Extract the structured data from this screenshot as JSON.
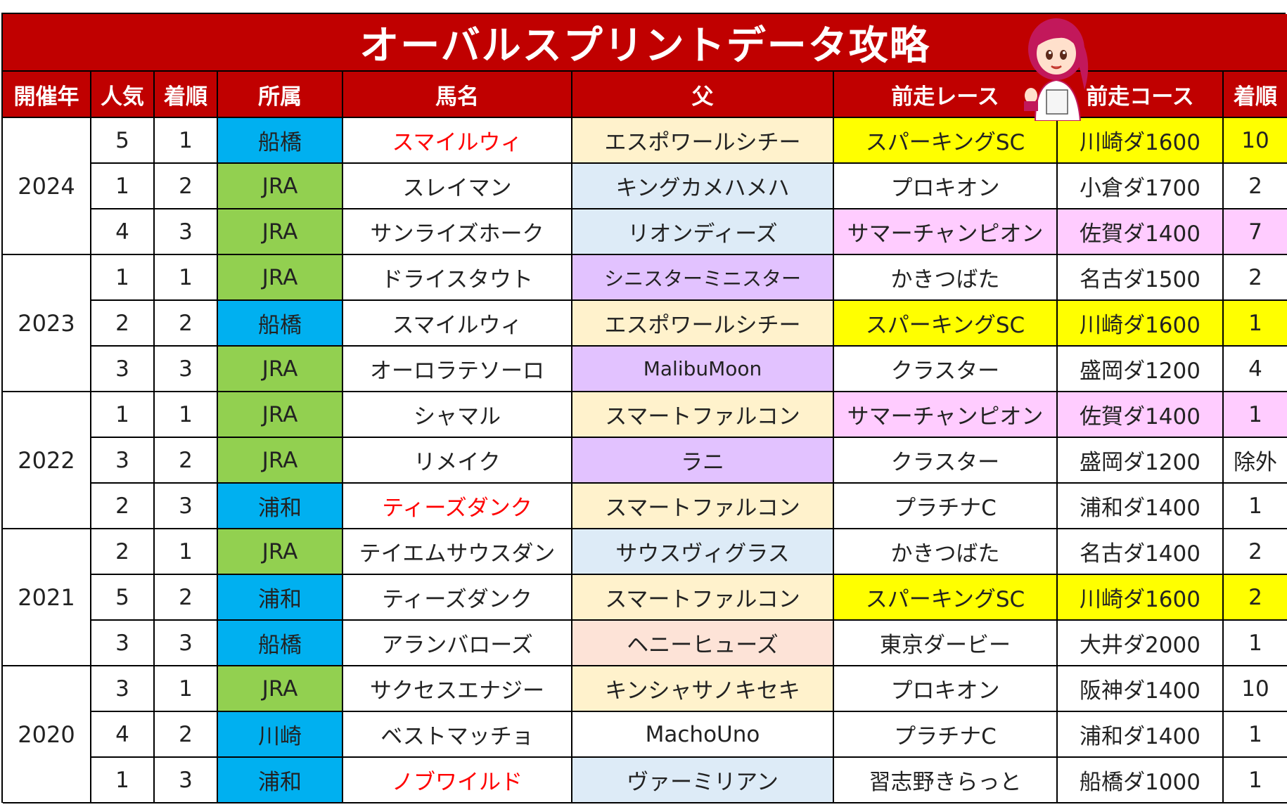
{
  "title": "オーバルスプリントデータ攻略",
  "colors": {
    "header_bg": "#c00000",
    "header_text": "#ffffff",
    "affil_funabashi": "#00b0f0",
    "affil_urawa": "#00b0f0",
    "affil_kawasaki": "#00b0f0",
    "affil_jra": "#92d050",
    "sire_cream": "#fff2cc",
    "sire_blue": "#ddebf7",
    "sire_purple": "#e2c2ff",
    "sire_peach": "#fde3d7",
    "hl_yellow": "#ffff00",
    "hl_pink": "#ffccff",
    "red_name": "#ff0000"
  },
  "headers": [
    "開催年",
    "人気",
    "着順",
    "所属",
    "馬名",
    "父",
    "前走レース",
    "前走コース",
    "着順"
  ],
  "rows": [
    {
      "year": "2024",
      "pop": "5",
      "rank": "1",
      "affil": "船橋",
      "affil_color": "#00b0f0",
      "horse": "スマイルウィ",
      "horse_red": true,
      "sire": "エスポワールシチー",
      "sire_color": "#fff2cc",
      "prev_race": "スパーキングSC",
      "prev_course": "川崎ダ1600",
      "prev_rank": "10",
      "hl": "#ffff00"
    },
    {
      "year": "",
      "pop": "1",
      "rank": "2",
      "affil": "JRA",
      "affil_color": "#92d050",
      "horse": "スレイマン",
      "horse_red": false,
      "sire": "キングカメハメハ",
      "sire_color": "#ddebf7",
      "prev_race": "プロキオン",
      "prev_course": "小倉ダ1700",
      "prev_rank": "2",
      "hl": ""
    },
    {
      "year": "",
      "pop": "4",
      "rank": "3",
      "affil": "JRA",
      "affil_color": "#92d050",
      "horse": "サンライズホーク",
      "horse_red": false,
      "sire": "リオンディーズ",
      "sire_color": "#ddebf7",
      "prev_race": "サマーチャンピオン",
      "prev_course": "佐賀ダ1400",
      "prev_rank": "7",
      "hl": "#ffccff"
    },
    {
      "year": "2023",
      "pop": "1",
      "rank": "1",
      "affil": "JRA",
      "affil_color": "#92d050",
      "horse": "ドライスタウト",
      "horse_red": false,
      "sire": "シニスターミニスター",
      "sire_color": "#e2c2ff",
      "prev_race": "かきつばた",
      "prev_course": "名古ダ1500",
      "prev_rank": "2",
      "hl": ""
    },
    {
      "year": "",
      "pop": "2",
      "rank": "2",
      "affil": "船橋",
      "affil_color": "#00b0f0",
      "horse": "スマイルウィ",
      "horse_red": false,
      "sire": "エスポワールシチー",
      "sire_color": "#fff2cc",
      "prev_race": "スパーキングSC",
      "prev_course": "川崎ダ1600",
      "prev_rank": "1",
      "hl": "#ffff00"
    },
    {
      "year": "",
      "pop": "3",
      "rank": "3",
      "affil": "JRA",
      "affil_color": "#92d050",
      "horse": "オーロラテソーロ",
      "horse_red": false,
      "sire": "MalibuMoon",
      "sire_color": "#e2c2ff",
      "prev_race": "クラスター",
      "prev_course": "盛岡ダ1200",
      "prev_rank": "4",
      "hl": ""
    },
    {
      "year": "2022",
      "pop": "1",
      "rank": "1",
      "affil": "JRA",
      "affil_color": "#92d050",
      "horse": "シャマル",
      "horse_red": false,
      "sire": "スマートファルコン",
      "sire_color": "#fff2cc",
      "prev_race": "サマーチャンピオン",
      "prev_course": "佐賀ダ1400",
      "prev_rank": "1",
      "hl": "#ffccff"
    },
    {
      "year": "",
      "pop": "3",
      "rank": "2",
      "affil": "JRA",
      "affil_color": "#92d050",
      "horse": "リメイク",
      "horse_red": false,
      "sire": "ラニ",
      "sire_color": "#e2c2ff",
      "prev_race": "クラスター",
      "prev_course": "盛岡ダ1200",
      "prev_rank": "除外",
      "hl": ""
    },
    {
      "year": "",
      "pop": "2",
      "rank": "3",
      "affil": "浦和",
      "affil_color": "#00b0f0",
      "horse": "ティーズダンク",
      "horse_red": true,
      "sire": "スマートファルコン",
      "sire_color": "#fff2cc",
      "prev_race": "プラチナC",
      "prev_course": "浦和ダ1400",
      "prev_rank": "1",
      "hl": ""
    },
    {
      "year": "2021",
      "pop": "2",
      "rank": "1",
      "affil": "JRA",
      "affil_color": "#92d050",
      "horse": "テイエムサウスダン",
      "horse_red": false,
      "sire": "サウスヴィグラス",
      "sire_color": "#ddebf7",
      "prev_race": "かきつばた",
      "prev_course": "名古ダ1400",
      "prev_rank": "2",
      "hl": ""
    },
    {
      "year": "",
      "pop": "5",
      "rank": "2",
      "affil": "浦和",
      "affil_color": "#00b0f0",
      "horse": "ティーズダンク",
      "horse_red": false,
      "sire": "スマートファルコン",
      "sire_color": "#fff2cc",
      "prev_race": "スパーキングSC",
      "prev_course": "川崎ダ1600",
      "prev_rank": "2",
      "hl": "#ffff00"
    },
    {
      "year": "",
      "pop": "3",
      "rank": "3",
      "affil": "船橋",
      "affil_color": "#00b0f0",
      "horse": "アランバローズ",
      "horse_red": false,
      "sire": "ヘニーヒューズ",
      "sire_color": "#fde3d7",
      "prev_race": "東京ダービー",
      "prev_course": "大井ダ2000",
      "prev_rank": "1",
      "hl": ""
    },
    {
      "year": "2020",
      "pop": "3",
      "rank": "1",
      "affil": "JRA",
      "affil_color": "#92d050",
      "horse": "サクセスエナジー",
      "horse_red": false,
      "sire": "キンシャサノキセキ",
      "sire_color": "#fff2cc",
      "prev_race": "プロキオン",
      "prev_course": "阪神ダ1400",
      "prev_rank": "10",
      "hl": ""
    },
    {
      "year": "",
      "pop": "4",
      "rank": "2",
      "affil": "川崎",
      "affil_color": "#00b0f0",
      "horse": "ベストマッチョ",
      "horse_red": false,
      "sire": "MachoUno",
      "sire_color": "#ffffff",
      "prev_race": "プラチナC",
      "prev_course": "浦和ダ1400",
      "prev_rank": "1",
      "hl": ""
    },
    {
      "year": "",
      "pop": "1",
      "rank": "3",
      "affil": "浦和",
      "affil_color": "#00b0f0",
      "horse": "ノブワイルド",
      "horse_red": true,
      "sire": "ヴァーミリアン",
      "sire_color": "#ddebf7",
      "prev_race": "習志野きらっと",
      "prev_course": "船橋ダ1000",
      "prev_rank": "1",
      "hl": ""
    }
  ]
}
